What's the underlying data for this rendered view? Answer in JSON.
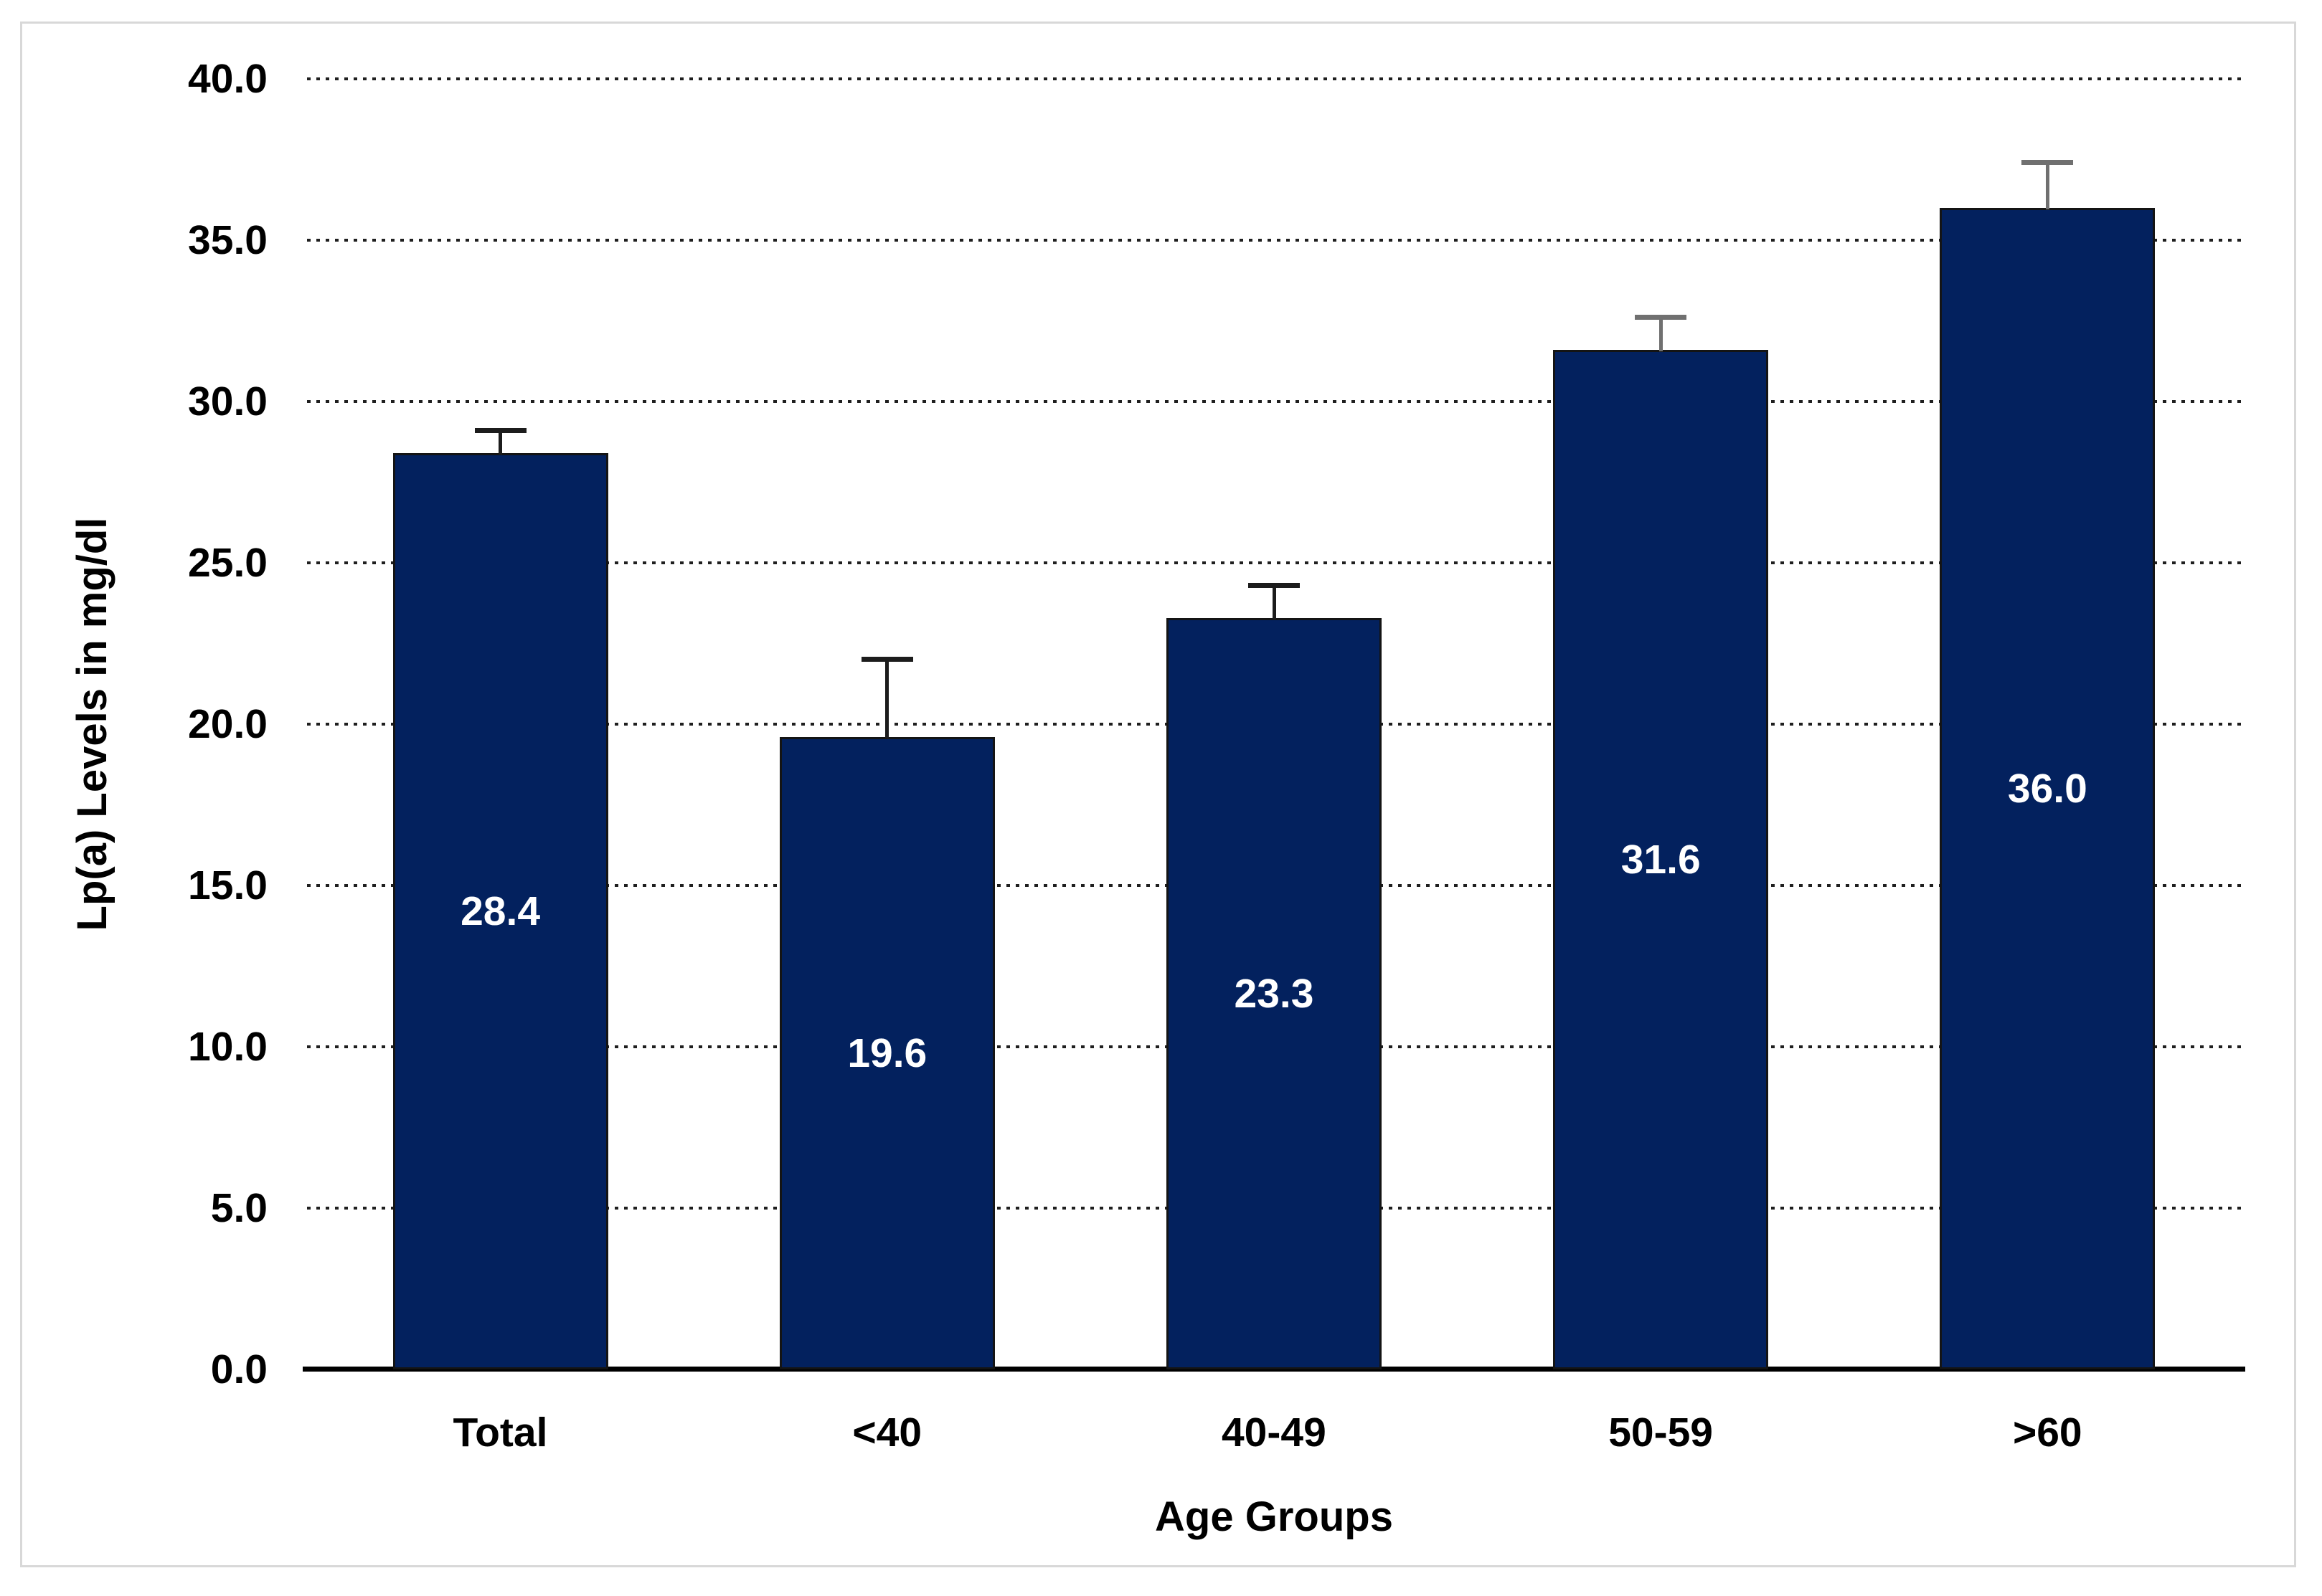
{
  "chart_data": {
    "type": "bar",
    "xlabel": "Age Groups",
    "ylabel": "Lp(a) Levels in mg/dl",
    "categories": [
      "Total",
      "<40",
      "40-49",
      "50-59",
      ">60"
    ],
    "values": [
      28.4,
      19.6,
      23.3,
      31.6,
      36.0
    ],
    "value_labels": [
      "28.4",
      "19.6",
      "23.3",
      "31.6",
      "36.0"
    ],
    "error_plus": [
      0.7,
      2.4,
      1.0,
      1.0,
      1.4
    ],
    "y_ticks": [
      "0.0",
      "5.0",
      "10.0",
      "15.0",
      "20.0",
      "25.0",
      "30.0",
      "35.0",
      "40.0"
    ],
    "ylim": [
      0,
      40
    ],
    "grid": "horizontal-dotted",
    "legend_position": "none",
    "colors": {
      "bar_fill": "#03215E",
      "bar_border": "#141414",
      "bar_value_label": "#FFFFFF",
      "axis_line": "#000000",
      "gridline": "#1F1F1F",
      "text": "#000000",
      "frame_border": "#D8D8D8",
      "error_bar_colors": [
        "#1C1C1C",
        "#1C1C1C",
        "#1C1C1C",
        "#707070",
        "#707070"
      ]
    }
  }
}
